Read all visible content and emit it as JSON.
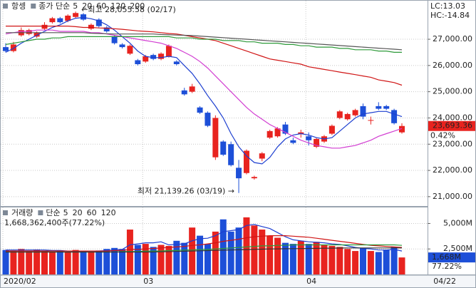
{
  "chart_data": {
    "type": "candlestick",
    "title": "항셍",
    "ma_label": "종가 단순",
    "up_color": "#e8231f",
    "down_color": "#1d4fd8",
    "grid": true,
    "categories": [
      "2020/02",
      null,
      null,
      null,
      null,
      null,
      null,
      null,
      null,
      null,
      null,
      null,
      null,
      null,
      null,
      null,
      null,
      null,
      "03",
      null,
      null,
      null,
      null,
      null,
      null,
      null,
      null,
      null,
      null,
      null,
      null,
      null,
      null,
      null,
      null,
      null,
      null,
      null,
      null,
      "04",
      null,
      null,
      null,
      null,
      null,
      null,
      null,
      null,
      null,
      null,
      null,
      null
    ],
    "open": [
      26700,
      26550,
      27150,
      27200,
      27100,
      27400,
      27650,
      27800,
      27700,
      27850,
      27950,
      27400,
      27750,
      27450,
      27100,
      26800,
      26450,
      26200,
      26150,
      26400,
      26250,
      26350,
      26150,
      25050,
      25000,
      24400,
      24200,
      22500,
      23100,
      23000,
      22100,
      21900,
      21700,
      22450,
      23250,
      23300,
      23750,
      23150,
      23400,
      23300,
      22900,
      23100,
      23400,
      24000,
      23950,
      24100,
      24450,
      23900,
      24450,
      24450,
      24300,
      23450
    ],
    "high": [
      26850,
      26900,
      27450,
      27400,
      27300,
      27650,
      27850,
      27850,
      27950,
      28055.58,
      28000,
      27600,
      27800,
      27500,
      27150,
      26850,
      26800,
      26250,
      26400,
      26450,
      26500,
      26800,
      26200,
      25150,
      25300,
      24450,
      24250,
      24100,
      23150,
      23100,
      22400,
      22800,
      21800,
      22700,
      23550,
      23650,
      23850,
      23250,
      23550,
      23450,
      23250,
      23350,
      23750,
      24300,
      24200,
      24350,
      24550,
      24050,
      24600,
      24500,
      24350,
      23800
    ],
    "low": [
      26500,
      26500,
      27100,
      27150,
      27050,
      27350,
      27600,
      27600,
      27650,
      27800,
      27700,
      27350,
      27450,
      27250,
      26800,
      26650,
      26400,
      26000,
      26100,
      26200,
      26200,
      26300,
      26000,
      24850,
      24950,
      24150,
      23650,
      22400,
      22550,
      22150,
      21139.26,
      21850,
      21650,
      22350,
      23200,
      23250,
      23350,
      23000,
      23250,
      22950,
      22850,
      23050,
      23350,
      23950,
      23900,
      24050,
      23950,
      23750,
      24300,
      24300,
      23750,
      23400
    ],
    "close": [
      26550,
      26800,
      27350,
      27350,
      27250,
      27550,
      27800,
      27650,
      27900,
      28000,
      27750,
      27550,
      27500,
      27300,
      26850,
      26700,
      26750,
      26050,
      26350,
      26250,
      26450,
      26750,
      26050,
      24900,
      25200,
      24200,
      23700,
      24000,
      22600,
      22200,
      21700,
      22750,
      21750,
      22650,
      23500,
      23600,
      23400,
      23050,
      23450,
      23150,
      23200,
      23300,
      23700,
      24250,
      24150,
      24300,
      24050,
      23920,
      24350,
      24350,
      23800,
      23693.36
    ],
    "ma_series": [
      {
        "name": "5",
        "color": "#1d3fd0",
        "values": [
          26500,
          26650,
          26850,
          27000,
          27150,
          27300,
          27450,
          27550,
          27700,
          27800,
          27830,
          27780,
          27700,
          27550,
          27350,
          27100,
          26850,
          26550,
          26350,
          26300,
          26300,
          26350,
          26300,
          26000,
          25700,
          25300,
          24850,
          24450,
          24000,
          23400,
          22900,
          22550,
          22300,
          22250,
          22500,
          22900,
          23200,
          23350,
          23400,
          23350,
          23250,
          23200,
          23250,
          23500,
          23750,
          24000,
          24150,
          24200,
          24250,
          24250,
          24150,
          24050
        ]
      },
      {
        "name": "20",
        "color": "#d23ed2",
        "values": [
          27200,
          27250,
          27300,
          27300,
          27350,
          27350,
          27350,
          27300,
          27300,
          27300,
          27300,
          27250,
          27250,
          27200,
          27150,
          27100,
          27050,
          27000,
          26950,
          26900,
          26850,
          26750,
          26650,
          26500,
          26350,
          26150,
          25900,
          25600,
          25300,
          25000,
          24700,
          24400,
          24150,
          23950,
          23750,
          23600,
          23450,
          23300,
          23150,
          23050,
          22950,
          22900,
          22850,
          22850,
          22900,
          22950,
          23050,
          23150,
          23300,
          23400,
          23500,
          23600
        ]
      },
      {
        "name": "60",
        "color": "#d01515",
        "values": [
          27500,
          27500,
          27500,
          27500,
          27500,
          27500,
          27500,
          27500,
          27500,
          27480,
          27450,
          27450,
          27430,
          27420,
          27400,
          27380,
          27350,
          27320,
          27300,
          27280,
          27250,
          27220,
          27200,
          27150,
          27100,
          27050,
          27000,
          26950,
          26850,
          26750,
          26650,
          26550,
          26450,
          26350,
          26250,
          26200,
          26150,
          26100,
          26050,
          25950,
          25900,
          25850,
          25800,
          25750,
          25700,
          25650,
          25600,
          25550,
          25450,
          25400,
          25350,
          25250
        ]
      },
      {
        "name": "120",
        "color": "#2e9a3a",
        "values": [
          26800,
          26850,
          26900,
          26950,
          27000,
          27000,
          27050,
          27050,
          27100,
          27100,
          27100,
          27100,
          27100,
          27100,
          27100,
          27100,
          27100,
          27100,
          27100,
          27100,
          27100,
          27100,
          27050,
          27050,
          27050,
          27000,
          27000,
          27000,
          26950,
          26950,
          26950,
          26900,
          26900,
          26850,
          26850,
          26850,
          26800,
          26800,
          26750,
          26750,
          26700,
          26700,
          26700,
          26650,
          26650,
          26600,
          26600,
          26600,
          26550,
          26550,
          26500,
          26500
        ]
      },
      {
        "name": "200",
        "color": "#555555",
        "values": [
          27250,
          27250,
          27250,
          27250,
          27250,
          27250,
          27250,
          27250,
          27250,
          27250,
          27250,
          27230,
          27220,
          27210,
          27200,
          27200,
          27200,
          27200,
          27200,
          27200,
          27180,
          27170,
          27160,
          27150,
          27140,
          27120,
          27100,
          27080,
          27060,
          27040,
          27020,
          27000,
          26980,
          26960,
          26940,
          26920,
          26900,
          26880,
          26860,
          26840,
          26820,
          26800,
          26780,
          26760,
          26740,
          26720,
          26700,
          26680,
          26660,
          26640,
          26620,
          26600
        ]
      }
    ],
    "ylim": [
      20670,
      28360
    ],
    "yticks": [
      {
        "value": 27000,
        "label": "27,000.00"
      },
      {
        "value": 26000,
        "label": "26,000.00"
      },
      {
        "value": 25000,
        "label": "25,000.00"
      },
      {
        "value": 24000,
        "label": "24,000.00"
      },
      {
        "value": 23000,
        "label": "23,000.00"
      },
      {
        "value": 22000,
        "label": "22,000.00"
      },
      {
        "value": 21000,
        "label": "21,000.00"
      }
    ],
    "max_annotation": "←최고 28,055.58 (02/17)",
    "min_annotation": "최저 21,139.26 (03/19) →",
    "lc_label": "LC:13.03",
    "hc_label": "HC:-14.84",
    "last_label": "23,693.36",
    "change_label": "0.42%",
    "cursor_date": "04/22",
    "volume": {
      "title": "거래량",
      "ma_label": "단순",
      "values": [
        2400,
        2350,
        2500,
        2300,
        2450,
        2300,
        2200,
        2350,
        2200,
        2400,
        2300,
        2250,
        2350,
        2500,
        2600,
        2500,
        4400,
        2900,
        3000,
        2700,
        2900,
        2800,
        3300,
        3100,
        4600,
        3800,
        3000,
        4200,
        5400,
        4200,
        4600,
        5600,
        4800,
        4400,
        3800,
        3600,
        3100,
        3000,
        3300,
        3000,
        3200,
        2900,
        2800,
        2700,
        2500,
        2300,
        2600,
        2300,
        2200,
        2400,
        2700,
        1668.3624
      ],
      "ma_series": [
        {
          "name": "5",
          "color": "#1d3fd0",
          "values": [
            2400,
            2400,
            2400,
            2400,
            2400,
            2400,
            2350,
            2350,
            2300,
            2300,
            2300,
            2300,
            2300,
            2350,
            2400,
            2450,
            2900,
            3000,
            3100,
            3100,
            3200,
            2900,
            2950,
            3000,
            3300,
            3500,
            3550,
            3800,
            4200,
            4300,
            4400,
            4800,
            4900,
            4700,
            4500,
            4100,
            3700,
            3400,
            3300,
            3200,
            3150,
            3100,
            3000,
            2950,
            2800,
            2650,
            2550,
            2500,
            2400,
            2400,
            2450,
            2300
          ]
        },
        {
          "name": "20",
          "color": "#d01515",
          "values": [
            2300,
            2300,
            2300,
            2300,
            2300,
            2300,
            2300,
            2300,
            2300,
            2300,
            2300,
            2300,
            2300,
            2300,
            2350,
            2350,
            2450,
            2450,
            2500,
            2550,
            2600,
            2650,
            2700,
            2750,
            2850,
            2900,
            3000,
            3100,
            3250,
            3350,
            3450,
            3600,
            3700,
            3750,
            3800,
            3800,
            3800,
            3750,
            3700,
            3650,
            3550,
            3450,
            3350,
            3250,
            3150,
            3050,
            2950,
            2850,
            2800,
            2750,
            2700,
            2650
          ]
        },
        {
          "name": "60",
          "color": "#2e9a3a",
          "values": [
            2200,
            2200,
            2200,
            2200,
            2200,
            2200,
            2200,
            2200,
            2200,
            2200,
            2200,
            2200,
            2200,
            2200,
            2200,
            2250,
            2250,
            2250,
            2300,
            2300,
            2300,
            2350,
            2350,
            2400,
            2400,
            2450,
            2450,
            2500,
            2550,
            2600,
            2650,
            2700,
            2750,
            2800,
            2800,
            2850,
            2850,
            2900,
            2900,
            2900,
            2900,
            2900,
            2900,
            2900,
            2900,
            2900,
            2900,
            2900,
            2900,
            2900,
            2900,
            2850
          ]
        },
        {
          "name": "120",
          "color": "#333333",
          "values": [
            2200,
            2200,
            2200,
            2200,
            2200,
            2200,
            2200,
            2200,
            2200,
            2200,
            2200,
            2200,
            2200,
            2200,
            2200,
            2200,
            2200,
            2200,
            2200,
            2200,
            2220,
            2240,
            2260,
            2280,
            2300,
            2320,
            2340,
            2360,
            2380,
            2400,
            2420,
            2440,
            2460,
            2480,
            2500,
            2510,
            2520,
            2530,
            2540,
            2550,
            2560,
            2570,
            2580,
            2590,
            2600,
            2600,
            2600,
            2600,
            2600,
            2600,
            2600,
            2600
          ]
        }
      ],
      "ylim": [
        0,
        6500
      ],
      "yticks": [
        {
          "value": 5000,
          "label": "5,000M"
        },
        {
          "value": 2500,
          "label": "2,500M"
        }
      ],
      "info": "1,668,362,400주(77.22%)",
      "last_label": "1,668M",
      "ratio_label": "77.22%"
    }
  }
}
